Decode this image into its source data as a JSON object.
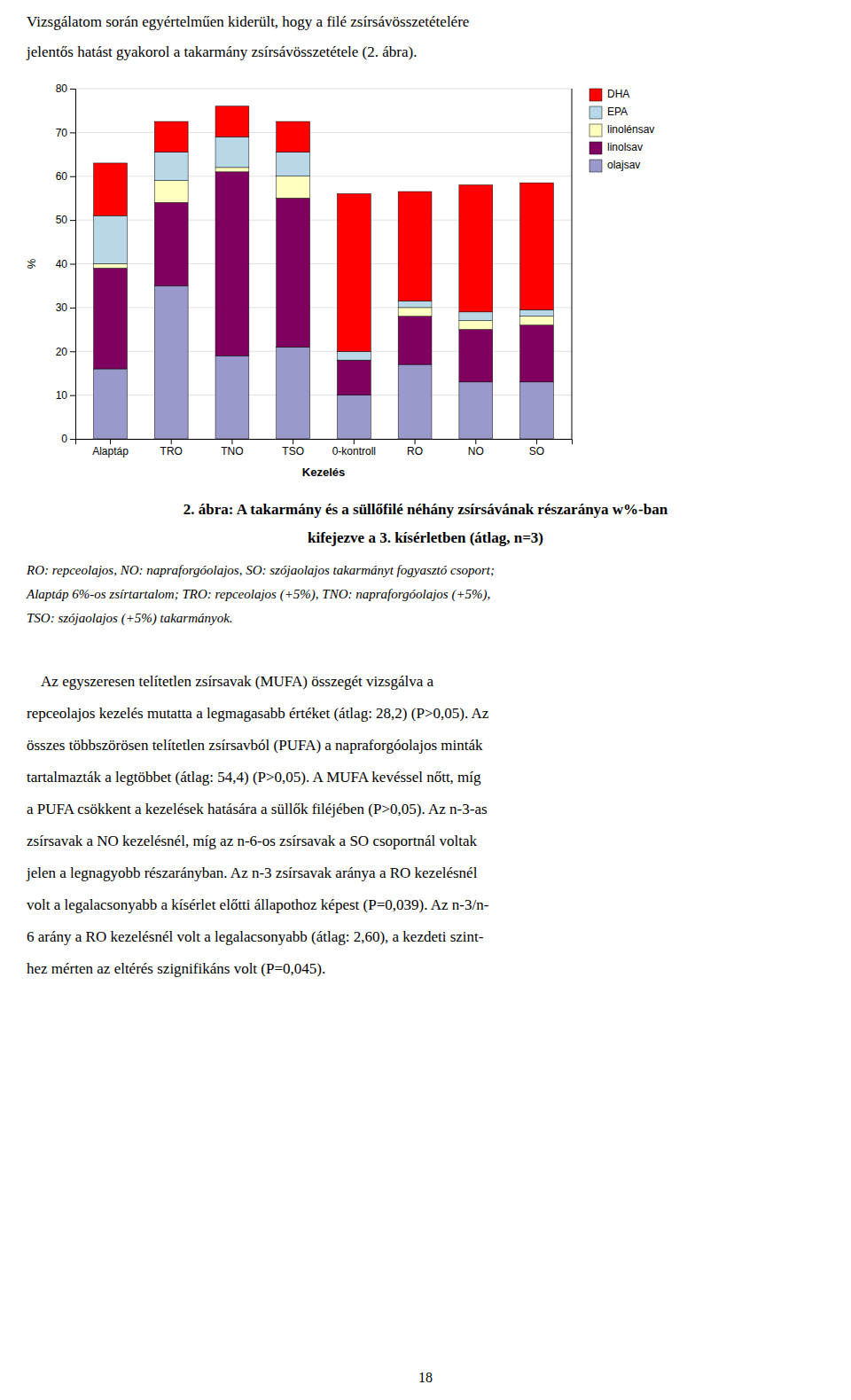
{
  "chart_data": {
    "type": "bar",
    "stacked": true,
    "categories": [
      "Alaptáp",
      "TRO",
      "TNO",
      "TSO",
      "0-kontroll",
      "RO",
      "NO",
      "SO"
    ],
    "xlabel": "Kezelés",
    "ylabel": "%",
    "ylim": [
      0,
      80
    ],
    "yticks": [
      0,
      10,
      20,
      30,
      40,
      50,
      60,
      70,
      80
    ],
    "grid": true,
    "legend": "upper right",
    "series": [
      {
        "name": "olajsav",
        "color": "#9999CC",
        "values": [
          16.0,
          35.0,
          19.0,
          21.0,
          10.0,
          17.0,
          13.0,
          13.0
        ]
      },
      {
        "name": "linolsav",
        "color": "#800060",
        "values": [
          23.0,
          19.0,
          42.0,
          34.0,
          8.0,
          11.0,
          12.0,
          13.0
        ]
      },
      {
        "name": "linolénsav",
        "color": "#FFFFC0",
        "values": [
          1.0,
          5.0,
          1.0,
          5.0,
          0.0,
          2.0,
          2.0,
          2.0
        ]
      },
      {
        "name": "EPA",
        "color": "#B8D8E8",
        "values": [
          11.0,
          6.5,
          7.0,
          5.5,
          2.0,
          1.5,
          2.0,
          1.5
        ]
      },
      {
        "name": "DHA",
        "color": "#FF0000",
        "values": [
          12.0,
          7.0,
          7.0,
          7.0,
          36.0,
          25.0,
          29.0,
          29.0
        ]
      }
    ]
  },
  "intro": [
    "Vizsgálatom során egyértelműen kiderült, hogy a filé zsírsávösszetételére",
    "jelentős hatást gyakorol a takarmány zsírsávösszetétele (2. ábra)."
  ],
  "caption": [
    "2. ábra: A takarmány és a süllőfilé néhány zsírsávának részaránya w%-ban",
    "kifejezve a 3. kísérletben (átlag, n=3)"
  ],
  "notes": [
    "RO: repceolajos, NO: napraforgóolajos, SO: szójaolajos takarmányt fogyasztó csoport;",
    "Alaptáp 6%-os zsírtartalom; TRO: repceolajos (+5%), TNO: napraforgóolajos (+5%),",
    "TSO: szójaolajos (+5%) takarmányok."
  ],
  "body": [
    "    Az egyszeresen telítetlen zsírsavak (MUFA) összegét vizsgálva a",
    "repceolajos kezelés mutatta a legmagasabb értéket (átlag: 28,2) (P>0,05). Az",
    "összes többszörösen telítetlen zsírsavból (PUFA) a napraforgóolajos minták",
    "tartalmazták a legtöbbet (átlag: 54,4) (P>0,05). A MUFA kevéssel nőtt, míg",
    "a PUFA csökkent a kezelések hatására a süllők filéjében (P>0,05). Az n-3-as",
    "zsírsavak a NO kezelésnél, míg az n-6-os zsírsavak a SO csoportnál voltak",
    "jelen a legnagyobb részarányban. Az n-3 zsírsavak aránya a RO kezelésnél",
    "volt a legalacsonyabb a kísérlet előtti állapothoz képest (P=0,039). Az n-3/n-",
    "6 arány a RO kezelésnél volt a legalacsonyabb (átlag: 2,60), a kezdeti szint-",
    "hez mérten az eltérés szignifikáns volt (P=0,045)."
  ],
  "page_number": "18"
}
